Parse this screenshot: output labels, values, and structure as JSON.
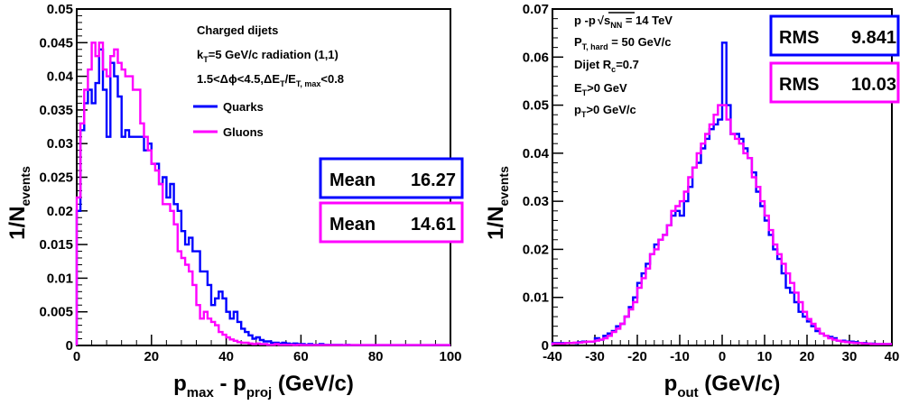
{
  "chart_data": [
    {
      "type": "line",
      "subtype": "step-histogram",
      "title": "",
      "xlabel": {
        "main": "p",
        "sub1": "max",
        "mid": " - p",
        "sub2": "proj",
        "tail": " (GeV/c)"
      },
      "ylabel": {
        "main": "1/N",
        "sub": "events"
      },
      "xlim": [
        0,
        100
      ],
      "ylim": [
        0,
        0.05
      ],
      "x_ticks": [
        "0",
        "20",
        "40",
        "60",
        "80",
        "100"
      ],
      "y_ticks": [
        "0",
        "0.005",
        "0.01",
        "0.015",
        "0.02",
        "0.025",
        "0.03",
        "0.035",
        "0.04",
        "0.045",
        "0.05"
      ],
      "info_lines": [
        "Charged dijets",
        "k",
        "T",
        "=5 GeV/c radiation (1,1)",
        "1.5<",
        "Δϕ",
        "<4.5,",
        "Δ",
        "E",
        "T",
        "/E",
        "T, max",
        "<0.8"
      ],
      "legend": [
        {
          "label": "Quarks",
          "color": "#0000ff"
        },
        {
          "label": "Gluons",
          "color": "#ff00ff"
        }
      ],
      "stat_boxes": [
        {
          "label": "Mean",
          "value": "16.27",
          "color": "#0000ff"
        },
        {
          "label": "Mean",
          "value": "14.61",
          "color": "#ff00ff"
        }
      ],
      "bin_width": 1,
      "series": [
        {
          "name": "Quarks",
          "color": "#0000ff",
          "x": [
            0,
            1,
            2,
            3,
            4,
            5,
            6,
            7,
            8,
            9,
            10,
            11,
            12,
            13,
            14,
            15,
            16,
            17,
            18,
            19,
            20,
            21,
            22,
            23,
            24,
            25,
            26,
            27,
            28,
            29,
            30,
            31,
            32,
            33,
            34,
            35,
            36,
            37,
            38,
            39,
            40,
            41,
            42,
            43,
            44,
            45,
            46,
            47,
            48,
            49,
            50,
            51,
            52,
            53,
            54,
            55,
            56,
            57,
            58,
            59,
            60,
            61,
            62,
            63,
            64,
            65,
            66,
            67,
            68,
            69,
            70,
            71,
            72,
            73,
            74,
            75,
            76,
            77,
            78,
            79,
            80,
            81,
            82,
            83,
            84,
            85,
            86,
            87,
            88,
            89,
            90,
            91,
            92,
            93,
            94,
            95,
            96,
            97,
            98,
            99
          ],
          "values": [
            0.02,
            0.032,
            0.036,
            0.038,
            0.036,
            0.039,
            0.044,
            0.038,
            0.031,
            0.042,
            0.04,
            0.037,
            0.031,
            0.032,
            0.031,
            0.031,
            0.031,
            0.031,
            0.029,
            0.03,
            0.027,
            0.027,
            0.024,
            0.025,
            0.022,
            0.024,
            0.021,
            0.02,
            0.017,
            0.015,
            0.016,
            0.014,
            0.014,
            0.011,
            0.011,
            0.009,
            0.006,
            0.007,
            0.008,
            0.007,
            0.005,
            0.004,
            0.005,
            0.0035,
            0.0025,
            0.002,
            0.0015,
            0.001,
            0.0012,
            0.0008,
            0.0006,
            0.0006,
            0.0004,
            0.0004,
            0.0003,
            0.0004,
            0.0003,
            0.0002,
            0.0003,
            0.0002,
            0.0002,
            0.0001,
            0.0002,
            0.0001,
            0.0001,
            0.0002,
            0.0001,
            0.0001,
            0.0001,
            0.0001,
            0.0001,
            5e-05,
            0.0001,
            5e-05,
            5e-05,
            5e-05,
            5e-05,
            5e-05,
            5e-05,
            5e-05,
            5e-05,
            5e-05,
            5e-05,
            5e-05,
            5e-05,
            5e-05,
            5e-05,
            5e-05,
            5e-05,
            5e-05,
            5e-05,
            5e-05,
            5e-05,
            5e-05,
            5e-05,
            5e-05,
            5e-05,
            5e-05,
            5e-05,
            5e-05
          ]
        },
        {
          "name": "Gluons",
          "color": "#ff00ff",
          "x": [
            0,
            1,
            2,
            3,
            4,
            5,
            6,
            7,
            8,
            9,
            10,
            11,
            12,
            13,
            14,
            15,
            16,
            17,
            18,
            19,
            20,
            21,
            22,
            23,
            24,
            25,
            26,
            27,
            28,
            29,
            30,
            31,
            32,
            33,
            34,
            35,
            36,
            37,
            38,
            39,
            40,
            41,
            42,
            43,
            44,
            45,
            46,
            47,
            48,
            49,
            50,
            51,
            52,
            53,
            54,
            55,
            56,
            57,
            58,
            59,
            60,
            61,
            62,
            63,
            64,
            65,
            66,
            67,
            68,
            69,
            70,
            71,
            72,
            73,
            74,
            75,
            76,
            77,
            78,
            79,
            80,
            81,
            82,
            83,
            84,
            85,
            86,
            87,
            88,
            89,
            90,
            91,
            92,
            93,
            94,
            95,
            96,
            97,
            98,
            99
          ],
          "values": [
            0.022,
            0.033,
            0.038,
            0.041,
            0.045,
            0.043,
            0.045,
            0.041,
            0.04,
            0.043,
            0.044,
            0.042,
            0.041,
            0.04,
            0.04,
            0.038,
            0.038,
            0.033,
            0.031,
            0.029,
            0.027,
            0.026,
            0.024,
            0.021,
            0.021,
            0.02,
            0.018,
            0.014,
            0.013,
            0.012,
            0.011,
            0.009,
            0.006,
            0.004,
            0.005,
            0.004,
            0.0035,
            0.003,
            0.002,
            0.0016,
            0.0012,
            0.0009,
            0.0007,
            0.0005,
            0.0004,
            0.0004,
            0.0003,
            0.0002,
            0.0003,
            0.0002,
            0.0002,
            0.0001,
            0.0001,
            0.0002,
            0.0001,
            0.0001,
            0.0001,
            0.0001,
            5e-05,
            0.0001,
            5e-05,
            5e-05,
            5e-05,
            5e-05,
            5e-05,
            5e-05,
            5e-05,
            5e-05,
            5e-05,
            5e-05,
            5e-05,
            5e-05,
            5e-05,
            5e-05,
            5e-05,
            5e-05,
            5e-05,
            5e-05,
            5e-05,
            5e-05,
            5e-05,
            5e-05,
            5e-05,
            5e-05,
            5e-05,
            5e-05,
            5e-05,
            5e-05,
            5e-05,
            5e-05,
            5e-05,
            5e-05,
            5e-05,
            5e-05,
            5e-05,
            5e-05,
            5e-05,
            5e-05,
            5e-05,
            5e-05
          ]
        }
      ]
    },
    {
      "type": "line",
      "subtype": "step-histogram",
      "title": "",
      "xlabel": {
        "main": "p",
        "sub1": "out",
        "tail": " (GeV/c)"
      },
      "ylabel": {
        "main": "1/N",
        "sub": "events"
      },
      "xlim": [
        -40,
        40
      ],
      "ylim": [
        0,
        0.07
      ],
      "x_ticks": [
        "-40",
        "-30",
        "-20",
        "-10",
        "0",
        "10",
        "20",
        "30",
        "40"
      ],
      "y_ticks": [
        "0",
        "0.01",
        "0.02",
        "0.03",
        "0.04",
        "0.05",
        "0.06",
        "0.07"
      ],
      "info_lines": [
        "p -p",
        "s",
        "NN",
        " = 14 TeV",
        "P",
        "T, hard",
        " = 50 GeV/c",
        "Dijet R",
        "c",
        "=0.7",
        "E",
        "T",
        ">0 GeV",
        "p",
        "T",
        ">0 GeV/c"
      ],
      "stat_boxes": [
        {
          "label": "RMS",
          "value": "9.841",
          "color": "#0000ff"
        },
        {
          "label": "RMS",
          "value": "10.03",
          "color": "#ff00ff"
        }
      ],
      "bin_width": 1,
      "series": [
        {
          "name": "Quarks",
          "color": "#0000ff",
          "x": [
            -40,
            -39,
            -38,
            -37,
            -36,
            -35,
            -34,
            -33,
            -32,
            -31,
            -30,
            -29,
            -28,
            -27,
            -26,
            -25,
            -24,
            -23,
            -22,
            -21,
            -20,
            -19,
            -18,
            -17,
            -16,
            -15,
            -14,
            -13,
            -12,
            -11,
            -10,
            -9,
            -8,
            -7,
            -6,
            -5,
            -4,
            -3,
            -2,
            -1,
            0,
            1,
            2,
            3,
            4,
            5,
            6,
            7,
            8,
            9,
            10,
            11,
            12,
            13,
            14,
            15,
            16,
            17,
            18,
            19,
            20,
            21,
            22,
            23,
            24,
            25,
            26,
            27,
            28,
            29,
            30,
            31,
            32,
            33,
            34,
            35,
            36,
            37,
            38,
            39
          ],
          "values": [
            0.0005,
            0.0005,
            0.0005,
            0.0005,
            0.0005,
            0.0005,
            0.0007,
            0.0008,
            0.0008,
            0.0008,
            0.0015,
            0.0012,
            0.002,
            0.0025,
            0.003,
            0.004,
            0.0045,
            0.006,
            0.008,
            0.01,
            0.013,
            0.015,
            0.017,
            0.019,
            0.021,
            0.022,
            0.023,
            0.025,
            0.027,
            0.028,
            0.027,
            0.03,
            0.033,
            0.037,
            0.038,
            0.041,
            0.043,
            0.045,
            0.046,
            0.047,
            0.063,
            0.05,
            0.044,
            0.044,
            0.043,
            0.041,
            0.039,
            0.036,
            0.032,
            0.029,
            0.026,
            0.023,
            0.02,
            0.018,
            0.015,
            0.012,
            0.011,
            0.009,
            0.007,
            0.006,
            0.005,
            0.004,
            0.003,
            0.0025,
            0.002,
            0.0018,
            0.0015,
            0.001,
            0.001,
            0.0008,
            0.0008,
            0.0007,
            0.0005,
            0.0005,
            0.0004,
            0.0004,
            0.0003,
            0.0003,
            0.0003,
            0.0003
          ]
        },
        {
          "name": "Gluons",
          "color": "#ff00ff",
          "x": [
            -40,
            -39,
            -38,
            -37,
            -36,
            -35,
            -34,
            -33,
            -32,
            -31,
            -30,
            -29,
            -28,
            -27,
            -26,
            -25,
            -24,
            -23,
            -22,
            -21,
            -20,
            -19,
            -18,
            -17,
            -16,
            -15,
            -14,
            -13,
            -12,
            -11,
            -10,
            -9,
            -8,
            -7,
            -6,
            -5,
            -4,
            -3,
            -2,
            -1,
            0,
            1,
            2,
            3,
            4,
            5,
            6,
            7,
            8,
            9,
            10,
            11,
            12,
            13,
            14,
            15,
            16,
            17,
            18,
            19,
            20,
            21,
            22,
            23,
            24,
            25,
            26,
            27,
            28,
            29,
            30,
            31,
            32,
            33,
            34,
            35,
            36,
            37,
            38,
            39
          ],
          "values": [
            0.0004,
            0.0004,
            0.0004,
            0.0005,
            0.0005,
            0.0006,
            0.0006,
            0.0007,
            0.0008,
            0.0008,
            0.001,
            0.0012,
            0.0015,
            0.002,
            0.0028,
            0.0035,
            0.0045,
            0.006,
            0.0075,
            0.009,
            0.012,
            0.014,
            0.016,
            0.019,
            0.02,
            0.022,
            0.023,
            0.025,
            0.028,
            0.029,
            0.03,
            0.032,
            0.035,
            0.037,
            0.04,
            0.042,
            0.044,
            0.046,
            0.048,
            0.05,
            0.05,
            0.047,
            0.044,
            0.043,
            0.042,
            0.04,
            0.039,
            0.035,
            0.033,
            0.03,
            0.027,
            0.024,
            0.021,
            0.019,
            0.017,
            0.015,
            0.013,
            0.011,
            0.009,
            0.007,
            0.0055,
            0.0045,
            0.0035,
            0.0025,
            0.002,
            0.0015,
            0.0012,
            0.001,
            0.0008,
            0.0007,
            0.0006,
            0.0005,
            0.0005,
            0.0004,
            0.0004,
            0.0003,
            0.0003,
            0.0003,
            0.0003,
            0.0003
          ]
        }
      ]
    }
  ]
}
